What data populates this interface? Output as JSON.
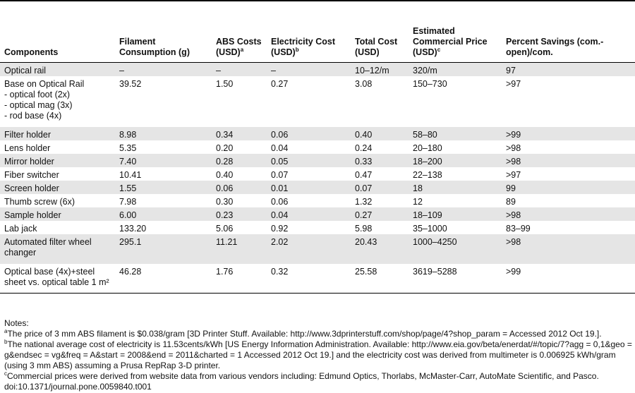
{
  "table": {
    "headers": [
      {
        "text": "Components",
        "sup": ""
      },
      {
        "text": "Filament Consumption (g)",
        "sup": ""
      },
      {
        "text": "ABS Costs (USD)",
        "sup": "a"
      },
      {
        "text": "Electricity Cost (USD)",
        "sup": "b"
      },
      {
        "text": "Total Cost (USD)",
        "sup": ""
      },
      {
        "text": "Estimated Commercial Price (USD)",
        "sup": "c"
      },
      {
        "text": "Percent Savings (com.-open)/com.",
        "sup": ""
      }
    ],
    "rows": [
      {
        "component": "Optical rail",
        "sub": [],
        "filament": "–",
        "abs": "–",
        "electricity": "–",
        "total": "10–12/m",
        "commercial": "320/m",
        "savings": "97"
      },
      {
        "component": "Base on Optical Rail",
        "sub": [
          "- optical foot (2x)",
          "- optical mag (3x)",
          "- rod base (4x)"
        ],
        "filament": "39.52",
        "abs": "1.50",
        "electricity": "0.27",
        "total": "3.08",
        "commercial": "150–730",
        "savings": ">97"
      },
      {
        "component": "Filter holder",
        "sub": [],
        "filament": "8.98",
        "abs": "0.34",
        "electricity": "0.06",
        "total": "0.40",
        "commercial": "58–80",
        "savings": ">99"
      },
      {
        "component": "Lens holder",
        "sub": [],
        "filament": "5.35",
        "abs": "0.20",
        "electricity": "0.04",
        "total": "0.24",
        "commercial": "20–180",
        "savings": ">98"
      },
      {
        "component": "Mirror holder",
        "sub": [],
        "filament": "7.40",
        "abs": "0.28",
        "electricity": "0.05",
        "total": "0.33",
        "commercial": "18–200",
        "savings": ">98"
      },
      {
        "component": "Fiber switcher",
        "sub": [],
        "filament": "10.41",
        "abs": "0.40",
        "electricity": "0.07",
        "total": "0.47",
        "commercial": "22–138",
        "savings": ">97"
      },
      {
        "component": "Screen holder",
        "sub": [],
        "filament": "1.55",
        "abs": "0.06",
        "electricity": "0.01",
        "total": "0.07",
        "commercial": "18",
        "savings": "99"
      },
      {
        "component": "Thumb screw (6x)",
        "sub": [],
        "filament": "7.98",
        "abs": "0.30",
        "electricity": "0.06",
        "total": "1.32",
        "commercial": "12",
        "savings": "89"
      },
      {
        "component": "Sample holder",
        "sub": [],
        "filament": "6.00",
        "abs": "0.23",
        "electricity": "0.04",
        "total": "0.27",
        "commercial": "18–109",
        "savings": ">98"
      },
      {
        "component": "Lab jack",
        "sub": [],
        "filament": "133.20",
        "abs": "5.06",
        "electricity": "0.92",
        "total": "5.98",
        "commercial": "35–1000",
        "savings": "83–99"
      },
      {
        "component": "Automated filter wheel changer",
        "sub": [],
        "filament": "295.1",
        "abs": "11.21",
        "electricity": "2.02",
        "total": "20.43",
        "commercial": "1000–4250",
        "savings": ">98"
      },
      {
        "component": "Optical base (4x)+steel sheet vs. optical table 1 m²",
        "sub": [],
        "filament": "46.28",
        "abs": "1.76",
        "electricity": "0.32",
        "total": "25.58",
        "commercial": "3619–5288",
        "savings": ">99"
      }
    ]
  },
  "notes": {
    "heading": "Notes:",
    "items": [
      {
        "sup": "a",
        "text": "The price of 3 mm ABS filament is $0.038/gram [3D Printer Stuff. Available: http://www.3dprinterstuff.com/shop/page/4?shop_param = Accessed 2012 Oct 19.]."
      },
      {
        "sup": "b",
        "text": "The national average cost of electricity is 11.53cents/kWh [US Energy Information Administration. Available: http://www.eia.gov/beta/enerdat/#/topic/7?agg = 0,1&geo = g&endsec = vg&freq = A&start = 2008&end = 2011&charted = 1 Accessed 2012 Oct 19.] and the electricity cost was derived from multimeter is 0.006925 kWh/gram (using 3 mm ABS) assuming a Prusa RepRap 3-D printer."
      },
      {
        "sup": "c",
        "text": "Commercial prices were derived from website data from various vendors including: Edmund Optics, Thorlabs, McMaster-Carr, AutoMate Scientific, and Pasco."
      }
    ],
    "doi": "doi:10.1371/journal.pone.0059840.t001"
  }
}
